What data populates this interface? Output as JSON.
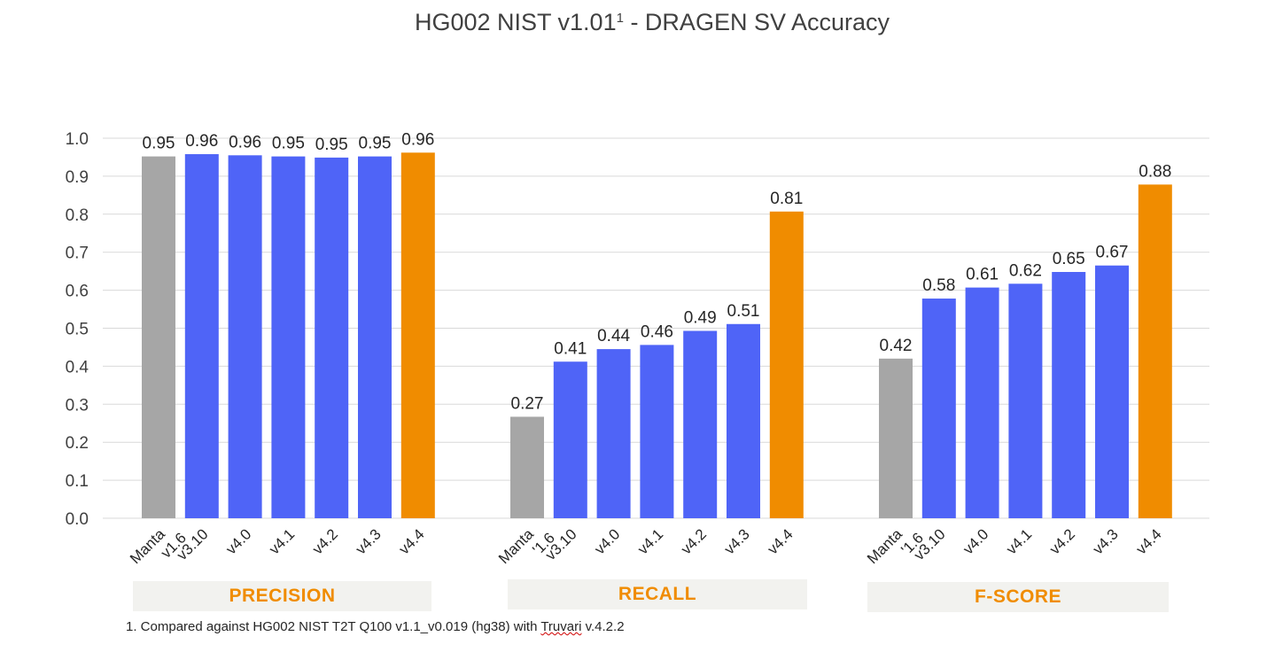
{
  "title": {
    "main": "HG002 NIST v1.01",
    "superscript": "1",
    "suffix": " - DRAGEN SV Accuracy"
  },
  "chart_data": {
    "type": "bar",
    "ylim": [
      0,
      1.0
    ],
    "yticks": [
      "0.0",
      "0.1",
      "0.2",
      "0.3",
      "0.4",
      "0.5",
      "0.6",
      "0.7",
      "0.8",
      "0.9",
      "1.0"
    ],
    "grid": true,
    "groups": [
      {
        "name": "PRECISION",
        "categories": [
          [
            "Manta",
            "v1.6"
          ],
          [
            "v3.10"
          ],
          [
            "v4.0"
          ],
          [
            "v4.1"
          ],
          [
            "v4.2"
          ],
          [
            "v4.3"
          ],
          [
            "v4.4"
          ]
        ],
        "values": [
          0.952,
          0.958,
          0.955,
          0.952,
          0.949,
          0.952,
          0.962
        ],
        "labels": [
          "0.95",
          "0.96",
          "0.96",
          "0.95",
          "0.95",
          "0.95",
          "0.96"
        ]
      },
      {
        "name": "RECALL",
        "categories": [
          [
            "Manta",
            "'1.6"
          ],
          [
            "v3.10"
          ],
          [
            "v4.0"
          ],
          [
            "v4.1"
          ],
          [
            "v4.2"
          ],
          [
            "v4.3"
          ],
          [
            "v4.4"
          ]
        ],
        "values": [
          0.267,
          0.412,
          0.445,
          0.456,
          0.493,
          0.511,
          0.807
        ],
        "labels": [
          "0.27",
          "0.41",
          "0.44",
          "0.46",
          "0.49",
          "0.51",
          "0.81"
        ]
      },
      {
        "name": "F-SCORE",
        "categories": [
          [
            "Manta",
            "'1.6"
          ],
          [
            "v3.10"
          ],
          [
            "v4.0"
          ],
          [
            "v4.1"
          ],
          [
            "v4.2"
          ],
          [
            "v4.3"
          ],
          [
            "v4.4"
          ]
        ],
        "values": [
          0.42,
          0.578,
          0.607,
          0.617,
          0.648,
          0.665,
          0.878
        ],
        "labels": [
          "0.42",
          "0.58",
          "0.61",
          "0.62",
          "0.65",
          "0.67",
          "0.88"
        ]
      }
    ],
    "bar_colors": [
      "#a6a6a6",
      "#4f64f7",
      "#4f64f7",
      "#4f64f7",
      "#4f64f7",
      "#4f64f7",
      "#f08c00"
    ],
    "group_label_color": "#f08c00"
  },
  "footnote": {
    "prefix": "1. Compared against HG002 NIST T2T Q100 v1.1_v0.019 (hg38) with ",
    "underlined": "Truvari",
    "suffix": " v.4.2.2"
  }
}
